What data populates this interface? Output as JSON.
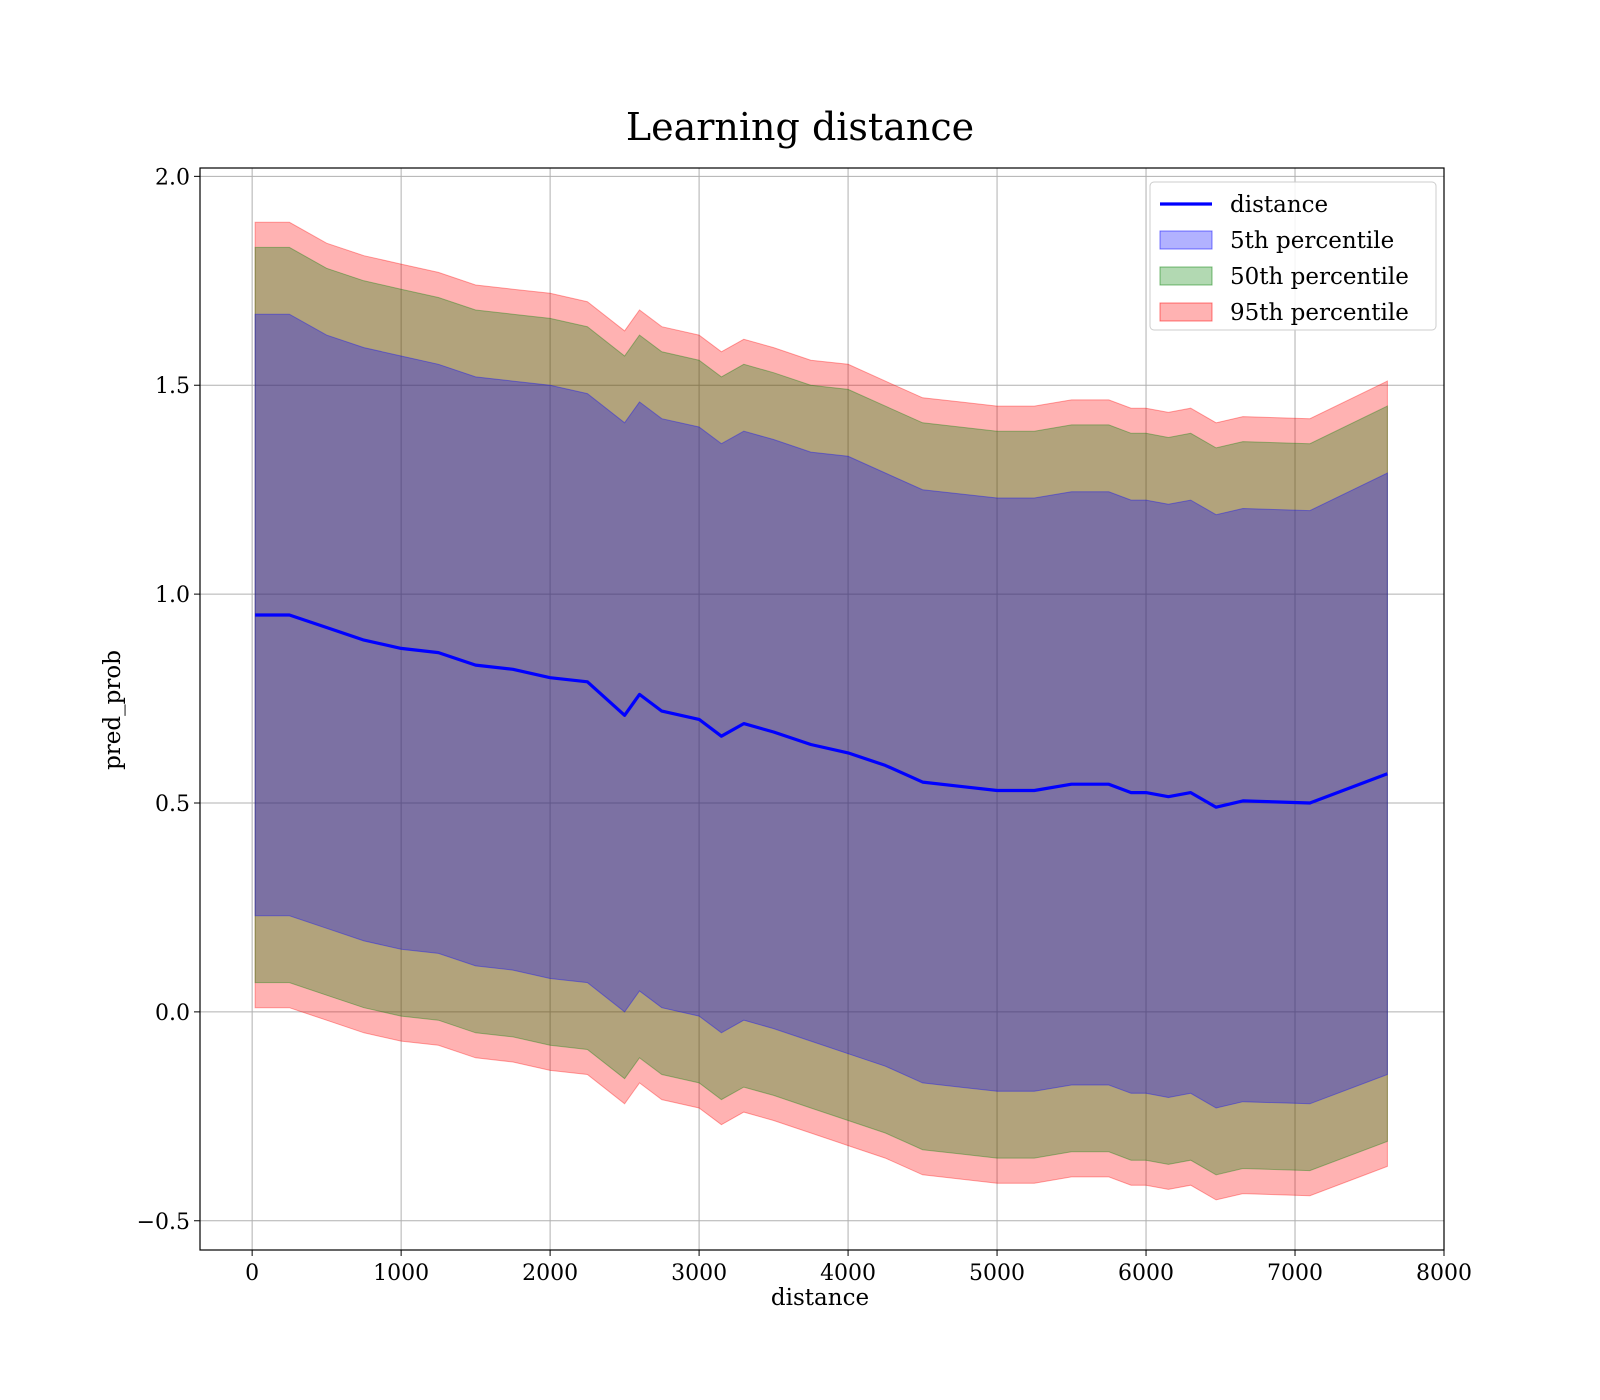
{
  "chart_data": {
    "type": "area",
    "title": "Learning distance",
    "xlabel": "distance",
    "ylabel": "pred_prob",
    "xlim": [
      -350,
      8000
    ],
    "ylim": [
      -0.57,
      2.02
    ],
    "xticks": [
      0,
      1000,
      2000,
      3000,
      4000,
      5000,
      6000,
      7000,
      8000
    ],
    "xtick_labels": [
      "0",
      "1000",
      "2000",
      "3000",
      "4000",
      "5000",
      "6000",
      "7000",
      "8000"
    ],
    "yticks": [
      -0.5,
      0.0,
      0.5,
      1.0,
      1.5,
      2.0
    ],
    "ytick_labels": [
      "−0.5",
      "0.0",
      "0.5",
      "1.0",
      "1.5",
      "2.0"
    ],
    "grid": true,
    "legend_position": "top-right",
    "x": [
      20,
      250,
      500,
      750,
      1000,
      1250,
      1500,
      1750,
      2000,
      2250,
      2500,
      2600,
      2750,
      3000,
      3150,
      3300,
      3500,
      3750,
      4000,
      4250,
      4500,
      4750,
      5000,
      5250,
      5500,
      5750,
      5900,
      6000,
      6150,
      6300,
      6470,
      6650,
      7100,
      7620
    ],
    "line": {
      "name": "distance",
      "color": "#0000ff",
      "values": [
        0.95,
        0.95,
        0.92,
        0.89,
        0.87,
        0.86,
        0.83,
        0.82,
        0.8,
        0.79,
        0.71,
        0.76,
        0.72,
        0.7,
        0.66,
        0.69,
        0.67,
        0.64,
        0.62,
        0.59,
        0.55,
        0.54,
        0.53,
        0.53,
        0.545,
        0.545,
        0.525,
        0.525,
        0.515,
        0.525,
        0.49,
        0.505,
        0.5,
        0.57
      ]
    },
    "bands": [
      {
        "name": "5th percentile",
        "color": "#0000ff",
        "opacity": 0.3,
        "upper": [
          1.67,
          1.67,
          1.62,
          1.59,
          1.57,
          1.55,
          1.52,
          1.51,
          1.5,
          1.48,
          1.41,
          1.46,
          1.42,
          1.4,
          1.36,
          1.39,
          1.37,
          1.34,
          1.33,
          1.29,
          1.25,
          1.24,
          1.23,
          1.23,
          1.245,
          1.245,
          1.225,
          1.225,
          1.215,
          1.225,
          1.19,
          1.205,
          1.2,
          1.29
        ],
        "lower": [
          0.23,
          0.23,
          0.2,
          0.17,
          0.15,
          0.14,
          0.11,
          0.1,
          0.08,
          0.07,
          0.0,
          0.05,
          0.01,
          -0.01,
          -0.05,
          -0.02,
          -0.04,
          -0.07,
          -0.1,
          -0.13,
          -0.17,
          -0.18,
          -0.19,
          -0.19,
          -0.175,
          -0.175,
          -0.195,
          -0.195,
          -0.205,
          -0.195,
          -0.23,
          -0.215,
          -0.22,
          -0.15
        ]
      },
      {
        "name": "50th percentile",
        "color": "#008000",
        "opacity": 0.3,
        "upper": [
          1.83,
          1.83,
          1.78,
          1.75,
          1.73,
          1.71,
          1.68,
          1.67,
          1.66,
          1.64,
          1.57,
          1.62,
          1.58,
          1.56,
          1.52,
          1.55,
          1.53,
          1.5,
          1.49,
          1.45,
          1.41,
          1.4,
          1.39,
          1.39,
          1.405,
          1.405,
          1.385,
          1.385,
          1.375,
          1.385,
          1.35,
          1.365,
          1.36,
          1.45
        ],
        "lower": [
          0.07,
          0.07,
          0.04,
          0.01,
          -0.01,
          -0.02,
          -0.05,
          -0.06,
          -0.08,
          -0.09,
          -0.16,
          -0.11,
          -0.15,
          -0.17,
          -0.21,
          -0.18,
          -0.2,
          -0.23,
          -0.26,
          -0.29,
          -0.33,
          -0.34,
          -0.35,
          -0.35,
          -0.335,
          -0.335,
          -0.355,
          -0.355,
          -0.365,
          -0.355,
          -0.39,
          -0.375,
          -0.38,
          -0.31
        ]
      },
      {
        "name": "95th percentile",
        "color": "#ff0000",
        "opacity": 0.3,
        "upper": [
          1.89,
          1.89,
          1.84,
          1.81,
          1.79,
          1.77,
          1.74,
          1.73,
          1.72,
          1.7,
          1.63,
          1.68,
          1.64,
          1.62,
          1.58,
          1.61,
          1.59,
          1.56,
          1.55,
          1.51,
          1.47,
          1.46,
          1.45,
          1.45,
          1.465,
          1.465,
          1.445,
          1.445,
          1.435,
          1.445,
          1.41,
          1.425,
          1.42,
          1.51
        ],
        "lower": [
          0.01,
          0.01,
          -0.02,
          -0.05,
          -0.07,
          -0.08,
          -0.11,
          -0.12,
          -0.14,
          -0.15,
          -0.22,
          -0.17,
          -0.21,
          -0.23,
          -0.27,
          -0.24,
          -0.26,
          -0.29,
          -0.32,
          -0.35,
          -0.39,
          -0.4,
          -0.41,
          -0.41,
          -0.395,
          -0.395,
          -0.415,
          -0.415,
          -0.425,
          -0.415,
          -0.45,
          -0.435,
          -0.44,
          -0.37
        ]
      }
    ]
  }
}
